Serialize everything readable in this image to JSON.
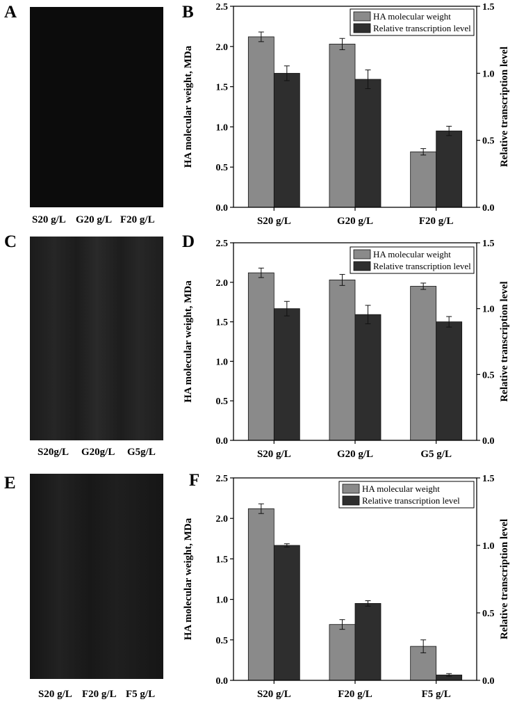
{
  "panels": {
    "A": "A",
    "B": "B",
    "C": "C",
    "D": "D",
    "E": "E",
    "F": "F"
  },
  "gels": [
    {
      "letter_key": "A",
      "labels": [
        "S20 g/L",
        "G20 g/L",
        "F20 g/L"
      ],
      "color": "#0c0c0c"
    },
    {
      "letter_key": "C",
      "labels": [
        "S20g/L",
        "G20g/L",
        "G5g/L"
      ],
      "color": "#202020"
    },
    {
      "letter_key": "E",
      "labels": [
        "S20 g/L",
        "F20 g/L",
        "F5 g/L"
      ],
      "color": "#1a1a1a"
    }
  ],
  "colors": {
    "series1": "#8a8a8a",
    "series2": "#2e2e2e"
  },
  "chart_data": [
    {
      "panel": "B",
      "type": "bar",
      "categories": [
        "S20 g/L",
        "G20 g/L",
        "F20 g/L"
      ],
      "ylabel": "HA molecular weight, MDa",
      "y2label": "Relative transcription level",
      "ylim": [
        0,
        2.5
      ],
      "y2lim": [
        0,
        1.5
      ],
      "yticks": [
        "0.0",
        "0.5",
        "1.0",
        "1.5",
        "2.0",
        "2.5"
      ],
      "y2ticks": [
        "0.0",
        "0.5",
        "1.0",
        "1.5"
      ],
      "legend_position": "top-right",
      "series": [
        {
          "name": "HA molecular weight",
          "axis": "left",
          "values": [
            2.12,
            2.03,
            0.69
          ],
          "errors": [
            0.06,
            0.07,
            0.04
          ]
        },
        {
          "name": "Relative transcription level",
          "axis": "right",
          "values": [
            1.0,
            0.955,
            0.57
          ],
          "errors": [
            0.055,
            0.07,
            0.035
          ]
        }
      ]
    },
    {
      "panel": "D",
      "type": "bar",
      "categories": [
        "S20 g/L",
        "G20 g/L",
        "G5 g/L"
      ],
      "ylabel": "HA molecular weight, MDa",
      "y2label": "Relative transcription level",
      "ylim": [
        0,
        2.5
      ],
      "y2lim": [
        0,
        1.5
      ],
      "yticks": [
        "0.0",
        "0.5",
        "1.0",
        "1.5",
        "2.0",
        "2.5"
      ],
      "y2ticks": [
        "0.0",
        "0.5",
        "1.0",
        "1.5"
      ],
      "legend_position": "top-right",
      "series": [
        {
          "name": "HA molecular weight",
          "axis": "left",
          "values": [
            2.12,
            2.03,
            1.95
          ],
          "errors": [
            0.06,
            0.07,
            0.04
          ]
        },
        {
          "name": "Relative transcription level",
          "axis": "right",
          "values": [
            1.0,
            0.955,
            0.9
          ],
          "errors": [
            0.055,
            0.07,
            0.04
          ]
        }
      ]
    },
    {
      "panel": "F",
      "type": "bar",
      "categories": [
        "S20 g/L",
        "F20 g/L",
        "F5 g/L"
      ],
      "ylabel": "HA molecular weight, MDa",
      "y2label": "Relative transcription level",
      "ylim": [
        0,
        2.5
      ],
      "y2lim": [
        0,
        1.5
      ],
      "yticks": [
        "0.0",
        "0.5",
        "1.0",
        "1.5",
        "2.0",
        "2.5"
      ],
      "y2ticks": [
        "0.0",
        "0.5",
        "1.0",
        "1.5"
      ],
      "legend_position": "top-right",
      "series": [
        {
          "name": "HA molecular weight",
          "axis": "left",
          "values": [
            2.12,
            0.69,
            0.42
          ],
          "errors": [
            0.06,
            0.06,
            0.08
          ]
        },
        {
          "name": "Relative transcription level",
          "axis": "right",
          "values": [
            1.0,
            0.57,
            0.04
          ],
          "errors": [
            0.012,
            0.02,
            0.01
          ]
        }
      ]
    }
  ]
}
